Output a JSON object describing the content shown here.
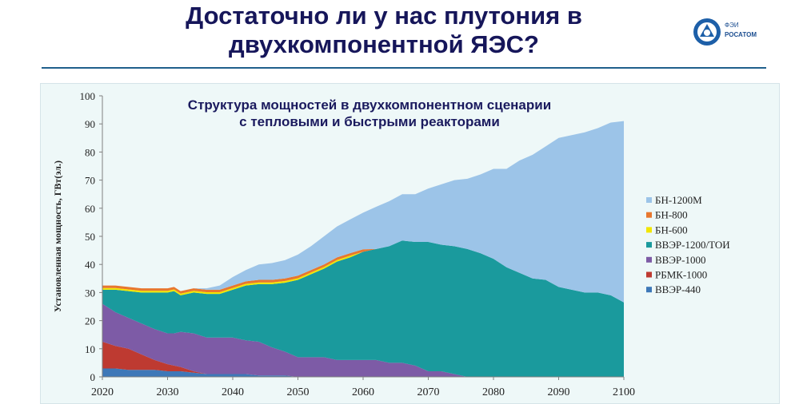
{
  "slide": {
    "title_line1": "Достаточно ли у нас плутония в",
    "title_line2": "двухкомпонентной ЯЭС?",
    "logo_text1": "ФЭИ",
    "logo_text2": "РОСАТОМ"
  },
  "chart_data": {
    "type": "area",
    "title_line1": "Структура мощностей в двухкомпонентном сценарии",
    "title_line2": "с тепловыми и быстрыми реакторами",
    "ylabel": "Установленная мощность, ГВт(эл.)",
    "xlabel": "",
    "x_ticks": [
      "2020",
      "2030",
      "2040",
      "2050",
      "2060",
      "2070",
      "2080",
      "2090",
      "2100"
    ],
    "y_ticks": [
      "0",
      "10",
      "20",
      "30",
      "40",
      "50",
      "60",
      "70",
      "80",
      "90",
      "100"
    ],
    "xlim": [
      2020,
      2100
    ],
    "ylim": [
      0,
      100
    ],
    "grid": false,
    "legend_position": "right",
    "x": [
      2020,
      2022,
      2024,
      2026,
      2028,
      2030,
      2031,
      2032,
      2034,
      2036,
      2038,
      2040,
      2042,
      2044,
      2046,
      2048,
      2050,
      2052,
      2054,
      2056,
      2058,
      2060,
      2062,
      2064,
      2066,
      2068,
      2070,
      2072,
      2074,
      2076,
      2078,
      2080,
      2082,
      2084,
      2086,
      2088,
      2090,
      2092,
      2094,
      2096,
      2098,
      2100
    ],
    "series": [
      {
        "name": "ВВЭР-440",
        "color": "#3e78b8",
        "values": [
          3,
          3,
          2.5,
          2.5,
          2.5,
          2,
          2,
          2,
          1.5,
          1,
          1,
          1,
          1,
          0.5,
          0.5,
          0.5,
          0,
          0,
          0,
          0,
          0,
          0,
          0,
          0,
          0,
          0,
          0,
          0,
          0,
          0,
          0,
          0,
          0,
          0,
          0,
          0,
          0,
          0,
          0,
          0,
          0,
          0
        ]
      },
      {
        "name": "РБМК-1000",
        "color": "#be3a31",
        "values": [
          9.5,
          8,
          7.5,
          5.5,
          3.5,
          2.5,
          2,
          1.5,
          0.5,
          0,
          0,
          0,
          0,
          0,
          0,
          0,
          0,
          0,
          0,
          0,
          0,
          0,
          0,
          0,
          0,
          0,
          0,
          0,
          0,
          0,
          0,
          0,
          0,
          0,
          0,
          0,
          0,
          0,
          0,
          0,
          0,
          0
        ]
      },
      {
        "name": "ВВЭР-1000",
        "color": "#7d5ba6",
        "values": [
          13.5,
          12,
          11,
          11,
          11,
          11,
          11.5,
          12.5,
          13.5,
          13,
          13,
          13,
          12,
          12,
          10,
          8.5,
          7,
          7,
          7,
          6,
          6,
          6,
          6,
          5,
          5,
          4,
          2,
          2,
          1,
          0,
          0,
          0,
          0,
          0,
          0,
          0,
          0,
          0,
          0,
          0,
          0,
          0
        ]
      },
      {
        "name": "ВВЭР-1200/ТОИ",
        "color": "#1a9a9d",
        "values": [
          5,
          8,
          9.5,
          11,
          13,
          14.5,
          15,
          13,
          14.5,
          15.5,
          15.5,
          17,
          19.5,
          20.5,
          22.5,
          24.5,
          27.5,
          29.5,
          31.5,
          35,
          36.5,
          38.5,
          39.5,
          41.5,
          43.5,
          44,
          46,
          45,
          45.5,
          45.5,
          44,
          42,
          39,
          37,
          35,
          34.5,
          32,
          31,
          30,
          30,
          29,
          26.5
        ]
      },
      {
        "name": "БН-600",
        "color": "#f2e600",
        "values": [
          0.6,
          0.6,
          0.6,
          0.6,
          0.6,
          0.6,
          0.6,
          0.6,
          0.6,
          0.6,
          0.6,
          0.6,
          0.6,
          0.6,
          0.6,
          0.6,
          0.6,
          0.6,
          0.6,
          0.6,
          0.6,
          0,
          0,
          0,
          0,
          0,
          0,
          0,
          0,
          0,
          0,
          0,
          0,
          0,
          0,
          0,
          0,
          0,
          0,
          0,
          0,
          0
        ]
      },
      {
        "name": "БН-800",
        "color": "#e8772e",
        "values": [
          0.9,
          0.9,
          0.9,
          0.9,
          0.9,
          0.9,
          0.9,
          0.9,
          0.9,
          0.9,
          0.9,
          0.9,
          0.9,
          0.9,
          0.9,
          0.9,
          0.9,
          0.9,
          0.9,
          0.9,
          0.9,
          0.9,
          0,
          0,
          0,
          0,
          0,
          0,
          0,
          0,
          0,
          0,
          0,
          0,
          0,
          0,
          0,
          0,
          0,
          0,
          0,
          0
        ]
      },
      {
        "name": "БН-1200М",
        "color": "#9cc4e8",
        "values": [
          0,
          0,
          0,
          0,
          0,
          0,
          0,
          0,
          0,
          0.5,
          1.5,
          3,
          4,
          5.5,
          6,
          6.5,
          7.5,
          8.5,
          10,
          11,
          12,
          13,
          15,
          16,
          16.5,
          17,
          19,
          21.5,
          23.5,
          25,
          28,
          32,
          35,
          40,
          44,
          47.5,
          53,
          55,
          57,
          58.5,
          61.5,
          64.5
        ]
      }
    ]
  }
}
